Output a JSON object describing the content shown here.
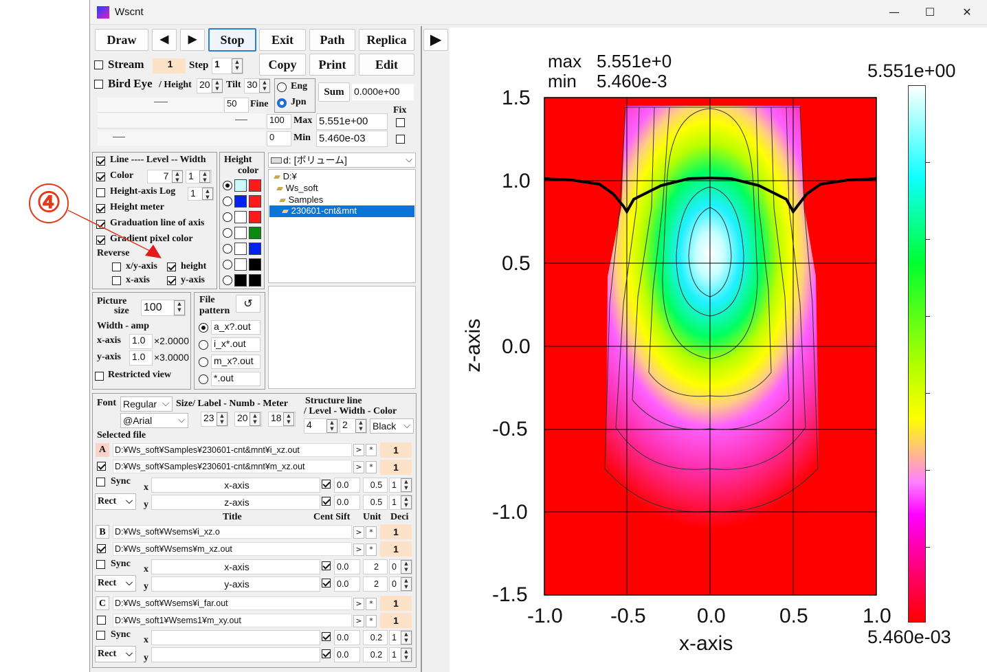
{
  "window": {
    "title": "Wscnt"
  },
  "toolbar": {
    "draw": "Draw",
    "stop": "Stop",
    "exit": "Exit",
    "path": "Path",
    "replica": "Replica",
    "copy": "Copy",
    "print": "Print",
    "edit": "Edit",
    "sum": "Sum",
    "sum_value": "0.000e+00"
  },
  "stream": {
    "label": "Stream",
    "value": "1",
    "step_label": "Step",
    "step_value": "1"
  },
  "birdeye": {
    "label": "Bird Eye",
    "height_label": "/ Height",
    "height_value": "20",
    "tilt_label": "Tilt",
    "tilt_value": "30",
    "fine_label": "Fine",
    "slider1_value": "50",
    "slider2_value": "100",
    "slider3_value": "0"
  },
  "lang": {
    "eng": "Eng",
    "jpn": "Jpn"
  },
  "range": {
    "fix_label": "Fix",
    "max_label": "Max",
    "max_value": "5.551e+00",
    "min_label": "Min",
    "min_value": "5.460e-03"
  },
  "options": {
    "line_label": "Line ---- Level -- Width",
    "line_level": "7",
    "line_width": "1",
    "color_label": "Color",
    "height_axis_log": "Height-axis Log",
    "log_value": "1",
    "height_meter": "Height meter",
    "graduation": "Graduation line of axis",
    "gradient": "Gradient pixel color",
    "reverse": "Reverse",
    "xy_axis": "x/y-axis",
    "height": "height",
    "x_axis": "x-axis",
    "y_axis": "y-axis"
  },
  "height_color": {
    "title1": "Height",
    "title2": "color"
  },
  "drive": {
    "value": "d: [ボリューム]"
  },
  "tree": {
    "items": [
      "D:¥",
      "Ws_soft",
      "Samples",
      "230601-cnt&mnt"
    ]
  },
  "picture": {
    "label1": "Picture",
    "label2": "size",
    "size_value": "100",
    "width_amp": "Width - amp",
    "xaxis_label": "x-axis",
    "xaxis_value": "1.0",
    "xaxis_factor": "×2.0000",
    "yaxis_label": "y-axis",
    "yaxis_value": "1.0",
    "yaxis_factor": "×3.0000",
    "restricted": "Restricted view"
  },
  "file_pattern": {
    "label1": "File",
    "label2": "pattern",
    "refresh": "↺",
    "options": [
      "a_x?.out",
      "i_x*.out",
      "m_x?.out",
      "*.out"
    ]
  },
  "font": {
    "label": "Font",
    "style": "Regular",
    "family": "@Arial",
    "size_label": "Size/ Label - Numb - Meter",
    "label_size": "23",
    "numb_size": "20",
    "meter_size": "18"
  },
  "structure": {
    "title1": "Structure line",
    "title2": "/ Level - Width - Color",
    "level": "4",
    "width": "2",
    "color": "Black"
  },
  "selected_file": {
    "label": "Selected file",
    "title_header": "Title",
    "cent_header": "Cent Sift",
    "unit_header": "Unit",
    "deci_header": "Deci"
  },
  "groups": [
    {
      "letter": "A",
      "file1": "D:¥Ws_soft¥Samples¥230601-cnt&mnt¥i_xz.out",
      "file2": "D:¥Ws_soft¥Samples¥230601-cnt&mnt¥m_xz.out",
      "n1": "1",
      "n2": "1",
      "sync": "Sync",
      "mode": "Rect",
      "x_title": "x-axis",
      "y_title": "z-axis",
      "x_cent": "0.0",
      "y_cent": "0.0",
      "x_unit": "0.5",
      "y_unit": "0.5",
      "x_deci": "1",
      "y_deci": "1"
    },
    {
      "letter": "B",
      "file1": "D:¥Ws_soft¥Wsems¥i_xz.o",
      "file2": "D:¥Ws_soft¥Wsems¥m_xz.out",
      "n1": "1",
      "n2": "1",
      "sync": "Sync",
      "mode": "Rect",
      "x_title": "x-axis",
      "y_title": "y-axis",
      "x_cent": "0.0",
      "y_cent": "0.0",
      "x_unit": "2",
      "y_unit": "2",
      "x_deci": "0",
      "y_deci": "0"
    },
    {
      "letter": "C",
      "file1": "D:¥Ws_soft¥Wsems¥i_far.out",
      "file2": "D:¥Ws_soft1¥Wsems1¥m_xy.out",
      "n1": "1",
      "n2": "1",
      "sync": "Sync",
      "mode": "Rect",
      "x_title": "",
      "y_title": "",
      "x_cent": "0.0",
      "y_cent": "0.0",
      "x_unit": "0.2",
      "y_unit": "0.2",
      "x_deci": "1",
      "y_deci": "1"
    }
  ],
  "annotation": {
    "label": "④"
  },
  "plot": {
    "max_label": "max",
    "max_value": "5.551e+0",
    "min_label": "min",
    "min_value": "5.460e-3",
    "xlabel": "x-axis",
    "ylabel": "z-axis",
    "xticks": [
      "-1.0",
      "-0.5",
      "0.0",
      "0.5",
      "1.0"
    ],
    "yticks": [
      "1.5",
      "1.0",
      "0.5",
      "0.0",
      "-0.5",
      "-1.0",
      "-1.5"
    ],
    "colorbar_max": "5.551e+00",
    "colorbar_min": "5.460e-03"
  },
  "chart_data": {
    "type": "heatmap",
    "xlabel": "x-axis",
    "ylabel": "z-axis",
    "xlim": [
      -1.0,
      1.0
    ],
    "ylim": [
      -1.5,
      1.5
    ],
    "value_range": [
      0.00546,
      5.551
    ],
    "peak": {
      "x": 0.0,
      "z": 0.55,
      "value": 5.551
    },
    "contour_levels": 7,
    "colormap": [
      "#ff0000",
      "#ff00ff",
      "#ffffff",
      "#00ffff",
      "#00ff00",
      "#ffff00",
      "#ff0000"
    ]
  }
}
